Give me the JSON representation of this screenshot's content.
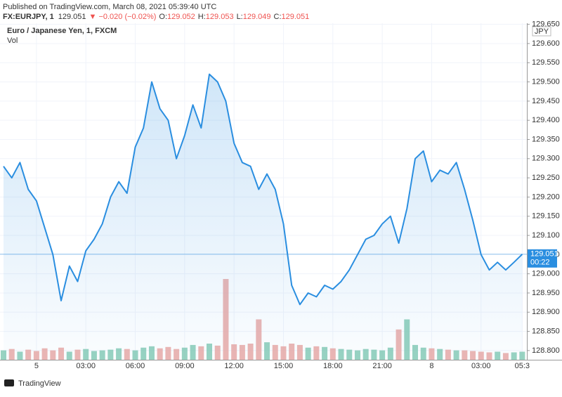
{
  "header": {
    "published": "Published on TradingView.com, March 08, 2021 05:39:40 UTC",
    "symbol": "FX:EURJPY, 1",
    "last": "129.051",
    "change": "▼ −0.020 (−0.02%)",
    "ohlc": [
      {
        "label": "O:",
        "value": "129.052"
      },
      {
        "label": "H:",
        "value": "129.053"
      },
      {
        "label": "L:",
        "value": "129.049"
      },
      {
        "label": "C:",
        "value": "129.051"
      }
    ]
  },
  "footer": {
    "brand": "TradingView"
  },
  "chart_data": {
    "type": "area",
    "title": "Euro / Japanese Yen, 1, FXCM",
    "volume_label": "Vol",
    "currency": "JPY",
    "countdown": "00:22",
    "grid": true,
    "categories": [
      null,
      null,
      null,
      null,
      "5",
      null,
      null,
      null,
      null,
      null,
      "03:00",
      null,
      null,
      null,
      null,
      null,
      "06:00",
      null,
      null,
      null,
      null,
      null,
      "09:00",
      null,
      null,
      null,
      null,
      null,
      "12:00",
      null,
      null,
      null,
      null,
      null,
      "15:00",
      null,
      null,
      null,
      null,
      null,
      "18:00",
      null,
      null,
      null,
      null,
      null,
      "21:00",
      null,
      null,
      null,
      null,
      null,
      "8",
      null,
      null,
      null,
      null,
      null,
      "03:00",
      null,
      null,
      null,
      null,
      "05:3"
    ],
    "series": [
      {
        "name": "EURJPY",
        "color": "#2a8ee0",
        "values": [
          129.28,
          129.25,
          129.29,
          129.22,
          129.19,
          129.12,
          129.05,
          128.93,
          129.02,
          128.98,
          129.06,
          129.09,
          129.13,
          129.2,
          129.24,
          129.21,
          129.33,
          129.38,
          129.5,
          129.43,
          129.4,
          129.3,
          129.36,
          129.44,
          129.38,
          129.52,
          129.5,
          129.45,
          129.34,
          129.29,
          129.28,
          129.22,
          129.26,
          129.22,
          129.13,
          128.97,
          128.92,
          128.95,
          128.94,
          128.97,
          128.96,
          128.98,
          129.01,
          129.05,
          129.09,
          129.1,
          129.13,
          129.15,
          129.08,
          129.17,
          129.3,
          129.32,
          129.24,
          129.27,
          129.26,
          129.29,
          129.22,
          129.14,
          129.05,
          129.01,
          129.03,
          129.01,
          129.03,
          129.051
        ]
      },
      {
        "name": "Vol",
        "axis": "y2",
        "up_color": "#7fc8b2",
        "down_color": "#e8a4a0",
        "values": [
          14,
          16,
          12,
          15,
          13,
          17,
          14,
          18,
          12,
          15,
          16,
          13,
          14,
          15,
          17,
          16,
          14,
          18,
          20,
          17,
          19,
          16,
          18,
          22,
          20,
          24,
          21,
          120,
          23,
          22,
          24,
          60,
          26,
          22,
          20,
          24,
          22,
          18,
          20,
          19,
          17,
          16,
          15,
          14,
          16,
          15,
          14,
          18,
          45,
          60,
          22,
          18,
          17,
          16,
          15,
          14,
          14,
          13,
          12,
          11,
          12,
          10,
          11,
          12
        ]
      }
    ],
    "ylim": [
      128.776,
      129.653
    ],
    "y2lim": [
      0,
      500
    ],
    "yticks": [
      {
        "value": 128.8,
        "label": "128.800"
      },
      {
        "value": 128.85,
        "label": "128.850"
      },
      {
        "value": 128.9,
        "label": "128.900"
      },
      {
        "value": 128.95,
        "label": "128.950"
      },
      {
        "value": 129.0,
        "label": "129.000"
      },
      {
        "value": 129.05,
        "label": "129.050"
      },
      {
        "value": 129.1,
        "label": "129.100"
      },
      {
        "value": 129.15,
        "label": "129.150"
      },
      {
        "value": 129.2,
        "label": "129.200"
      },
      {
        "value": 129.25,
        "label": "129.250"
      },
      {
        "value": 129.3,
        "label": "129.300"
      },
      {
        "value": 129.35,
        "label": "129.350"
      },
      {
        "value": 129.4,
        "label": "129.400"
      },
      {
        "value": 129.45,
        "label": "129.450"
      },
      {
        "value": 129.5,
        "label": "129.500"
      },
      {
        "value": 129.55,
        "label": "129.550"
      },
      {
        "value": 129.6,
        "label": "129.600"
      },
      {
        "value": 129.65,
        "label": "129.650"
      }
    ]
  }
}
